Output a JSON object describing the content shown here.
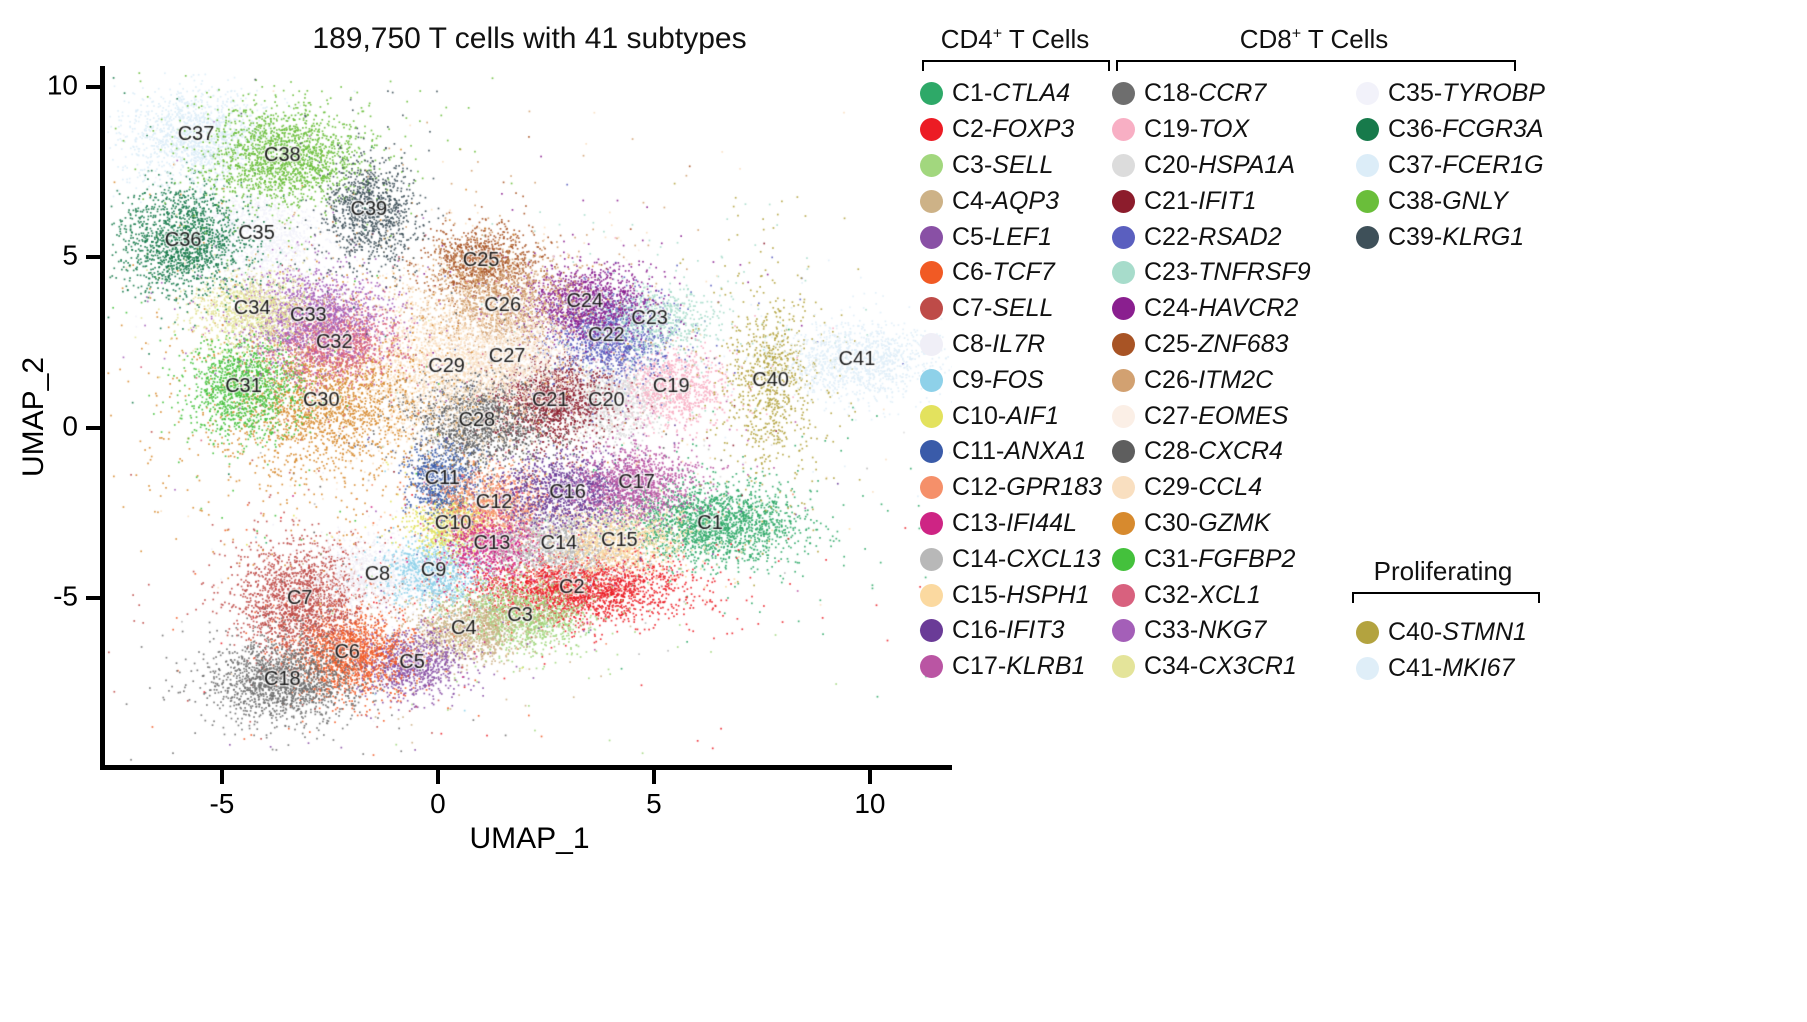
{
  "title": "189,750 T cells with 41 subtypes",
  "axes": {
    "x_label": "UMAP_1",
    "y_label": "UMAP_2",
    "x_ticks": [
      -5,
      0,
      5,
      10
    ],
    "y_ticks": [
      -5,
      0,
      5,
      10
    ],
    "xlim": [
      -7.66,
      11.9
    ],
    "ylim": [
      -9.9,
      10.5
    ]
  },
  "legend": {
    "groups": [
      {
        "title": {
          "pre": "CD4",
          "sup": "+",
          "post": " T Cells"
        },
        "items": [
          {
            "id": "C1",
            "gene": "CTLA4",
            "color": "#2EA968"
          },
          {
            "id": "C2",
            "gene": "FOXP3",
            "color": "#EC1C24"
          },
          {
            "id": "C3",
            "gene": "SELL",
            "color": "#A2D77E"
          },
          {
            "id": "C4",
            "gene": "AQP3",
            "color": "#CDB287"
          },
          {
            "id": "C5",
            "gene": "LEF1",
            "color": "#8950A5"
          },
          {
            "id": "C6",
            "gene": "TCF7",
            "color": "#F15A24"
          },
          {
            "id": "C7",
            "gene": "SELL",
            "color": "#BE4B48"
          },
          {
            "id": "C8",
            "gene": "IL7R",
            "color": "#F0EFF7"
          },
          {
            "id": "C9",
            "gene": "FOS",
            "color": "#8ED1E9"
          },
          {
            "id": "C10",
            "gene": "AIF1",
            "color": "#E3E25E"
          },
          {
            "id": "C11",
            "gene": "ANXA1",
            "color": "#3A5BA9"
          },
          {
            "id": "C12",
            "gene": "GPR183",
            "color": "#F5906A"
          },
          {
            "id": "C13",
            "gene": "IFI44L",
            "color": "#CE2484"
          },
          {
            "id": "C14",
            "gene": "CXCL13",
            "color": "#B8B8B8"
          },
          {
            "id": "C15",
            "gene": "HSPH1",
            "color": "#FBD9A0"
          },
          {
            "id": "C16",
            "gene": "IFIT3",
            "color": "#6A3B97"
          },
          {
            "id": "C17",
            "gene": "KLRB1",
            "color": "#BA55A3"
          }
        ]
      },
      {
        "title": {
          "pre": "CD8",
          "sup": "+",
          "post": " T Cells"
        },
        "items": [
          {
            "id": "C18",
            "gene": "CCR7",
            "color": "#6E6E6E"
          },
          {
            "id": "C19",
            "gene": "TOX",
            "color": "#F8AFC4"
          },
          {
            "id": "C20",
            "gene": "HSPA1A",
            "color": "#DCDCDC"
          },
          {
            "id": "C21",
            "gene": "IFIT1",
            "color": "#8C1C2C"
          },
          {
            "id": "C22",
            "gene": "RSAD2",
            "color": "#5A5FBF"
          },
          {
            "id": "C23",
            "gene": "TNFRSF9",
            "color": "#A7DCCB"
          },
          {
            "id": "C24",
            "gene": "HAVCR2",
            "color": "#8A1F8F"
          },
          {
            "id": "C25",
            "gene": "ZNF683",
            "color": "#A85425"
          },
          {
            "id": "C26",
            "gene": "ITM2C",
            "color": "#D2A171"
          },
          {
            "id": "C27",
            "gene": "EOMES",
            "color": "#FBEFE6"
          },
          {
            "id": "C28",
            "gene": "CXCR4",
            "color": "#5E5E5E"
          },
          {
            "id": "C29",
            "gene": "CCL4",
            "color": "#F9DFC0"
          },
          {
            "id": "C30",
            "gene": "GZMK",
            "color": "#D78A2E"
          },
          {
            "id": "C31",
            "gene": "FGFBP2",
            "color": "#44C13C"
          },
          {
            "id": "C32",
            "gene": "XCL1",
            "color": "#D8617E"
          },
          {
            "id": "C33",
            "gene": "NKG7",
            "color": "#A45FB8"
          },
          {
            "id": "C34",
            "gene": "CX3CR1",
            "color": "#E4E49A"
          },
          {
            "id": "C35",
            "gene": "TYROBP",
            "color": "#F2F2FA"
          },
          {
            "id": "C36",
            "gene": "FCGR3A",
            "color": "#177A4B"
          },
          {
            "id": "C37",
            "gene": "FCER1G",
            "color": "#DCEDF8"
          },
          {
            "id": "C38",
            "gene": "GNLY",
            "color": "#6ABE3A"
          },
          {
            "id": "C39",
            "gene": "KLRG1",
            "color": "#3E5059"
          }
        ]
      },
      {
        "title": {
          "pre": "Proliferating",
          "sup": "",
          "post": ""
        },
        "items": [
          {
            "id": "C40",
            "gene": "STMN1",
            "color": "#B3A33F"
          },
          {
            "id": "C41",
            "gene": "MKI67",
            "color": "#DFEEF8"
          }
        ]
      }
    ]
  },
  "chart_data": {
    "type": "scatter",
    "title": "189,750 T cells with 41 subtypes",
    "xlabel": "UMAP_1",
    "ylabel": "UMAP_2",
    "xlim": [
      -7.66,
      11.9
    ],
    "ylim": [
      -9.9,
      10.5
    ],
    "total_cells": "189,750",
    "n_subtypes": 41,
    "clusters": [
      {
        "id": "C1",
        "gene": "CTLA4",
        "color": "#2EA968",
        "x": 6.3,
        "y": -2.8,
        "sx": 1.05,
        "sy": 0.6,
        "n": 2000
      },
      {
        "id": "C2",
        "gene": "FOXP3",
        "color": "#EC1C24",
        "x": 3.1,
        "y": -4.7,
        "sx": 1.25,
        "sy": 0.5,
        "n": 2400
      },
      {
        "id": "C3",
        "gene": "SELL",
        "color": "#A2D77E",
        "x": 1.9,
        "y": -5.5,
        "sx": 0.8,
        "sy": 0.55,
        "n": 1300
      },
      {
        "id": "C4",
        "gene": "AQP3",
        "color": "#CDB287",
        "x": 0.6,
        "y": -5.9,
        "sx": 0.7,
        "sy": 0.5,
        "n": 1100
      },
      {
        "id": "C5",
        "gene": "LEF1",
        "color": "#8950A5",
        "x": -0.6,
        "y": -6.9,
        "sx": 0.6,
        "sy": 0.5,
        "n": 900
      },
      {
        "id": "C6",
        "gene": "TCF7",
        "color": "#F15A24",
        "x": -2.1,
        "y": -6.6,
        "sx": 0.7,
        "sy": 0.65,
        "n": 1600
      },
      {
        "id": "C7",
        "gene": "SELL",
        "color": "#BE4B48",
        "x": -3.2,
        "y": -5.0,
        "sx": 0.75,
        "sy": 0.85,
        "n": 1800
      },
      {
        "id": "C8",
        "gene": "IL7R",
        "color": "#F0EFF7",
        "x": -1.4,
        "y": -4.3,
        "sx": 0.7,
        "sy": 0.55,
        "n": 1100
      },
      {
        "id": "C9",
        "gene": "FOS",
        "color": "#8ED1E9",
        "x": -0.1,
        "y": -4.2,
        "sx": 0.55,
        "sy": 0.5,
        "n": 900
      },
      {
        "id": "C10",
        "gene": "AIF1",
        "color": "#E3E25E",
        "x": 0.35,
        "y": -2.8,
        "sx": 0.5,
        "sy": 0.45,
        "n": 800
      },
      {
        "id": "C11",
        "gene": "ANXA1",
        "color": "#3A5BA9",
        "x": 0.1,
        "y": -1.5,
        "sx": 0.4,
        "sy": 0.55,
        "n": 800
      },
      {
        "id": "C12",
        "gene": "GPR183",
        "color": "#F5906A",
        "x": 1.3,
        "y": -2.2,
        "sx": 0.7,
        "sy": 0.55,
        "n": 1100
      },
      {
        "id": "C13",
        "gene": "IFI44L",
        "color": "#CE2484",
        "x": 1.25,
        "y": -3.4,
        "sx": 0.55,
        "sy": 0.45,
        "n": 800
      },
      {
        "id": "C14",
        "gene": "CXCL13",
        "color": "#B8B8B8",
        "x": 2.8,
        "y": -3.4,
        "sx": 0.85,
        "sy": 0.5,
        "n": 1300
      },
      {
        "id": "C15",
        "gene": "HSPH1",
        "color": "#FBD9A0",
        "x": 4.2,
        "y": -3.3,
        "sx": 0.8,
        "sy": 0.5,
        "n": 1200
      },
      {
        "id": "C16",
        "gene": "IFIT3",
        "color": "#6A3B97",
        "x": 3.0,
        "y": -1.9,
        "sx": 0.8,
        "sy": 0.55,
        "n": 1300
      },
      {
        "id": "C17",
        "gene": "KLRB1",
        "color": "#BA55A3",
        "x": 4.6,
        "y": -1.6,
        "sx": 0.7,
        "sy": 0.55,
        "n": 1200
      },
      {
        "id": "C18",
        "gene": "CCR7",
        "color": "#6E6E6E",
        "x": -3.6,
        "y": -7.4,
        "sx": 0.85,
        "sy": 0.6,
        "n": 1700
      },
      {
        "id": "C19",
        "gene": "TOX",
        "color": "#F8AFC4",
        "x": 5.4,
        "y": 1.2,
        "sx": 0.65,
        "sy": 0.55,
        "n": 1000
      },
      {
        "id": "C20",
        "gene": "HSPA1A",
        "color": "#DCDCDC",
        "x": 3.9,
        "y": 0.8,
        "sx": 0.6,
        "sy": 0.55,
        "n": 1000
      },
      {
        "id": "C21",
        "gene": "IFIT1",
        "color": "#8C1C2C",
        "x": 2.6,
        "y": 0.8,
        "sx": 0.7,
        "sy": 0.65,
        "n": 1400
      },
      {
        "id": "C22",
        "gene": "RSAD2",
        "color": "#5A5FBF",
        "x": 3.9,
        "y": 2.7,
        "sx": 0.7,
        "sy": 0.6,
        "n": 1300
      },
      {
        "id": "C23",
        "gene": "TNFRSF9",
        "color": "#A7DCCB",
        "x": 4.9,
        "y": 3.2,
        "sx": 0.75,
        "sy": 0.5,
        "n": 800,
        "noise": 0.15
      },
      {
        "id": "C24",
        "gene": "HAVCR2",
        "color": "#8A1F8F",
        "x": 3.4,
        "y": 3.7,
        "sx": 0.75,
        "sy": 0.55,
        "n": 1300
      },
      {
        "id": "C25",
        "gene": "ZNF683",
        "color": "#A85425",
        "x": 1.0,
        "y": 4.9,
        "sx": 0.6,
        "sy": 0.5,
        "n": 1000
      },
      {
        "id": "C26",
        "gene": "ITM2C",
        "color": "#D2A171",
        "x": 1.5,
        "y": 3.6,
        "sx": 0.9,
        "sy": 0.75,
        "n": 1500,
        "noise": 0.1
      },
      {
        "id": "C27",
        "gene": "EOMES",
        "color": "#FBEFE6",
        "x": 1.6,
        "y": 2.1,
        "sx": 0.8,
        "sy": 0.65,
        "n": 1200
      },
      {
        "id": "C28",
        "gene": "CXCR4",
        "color": "#5E5E5E",
        "x": 0.9,
        "y": 0.2,
        "sx": 0.8,
        "sy": 0.65,
        "n": 1500
      },
      {
        "id": "C29",
        "gene": "CCL4",
        "color": "#F9DFC0",
        "x": 0.2,
        "y": 1.8,
        "sx": 1.35,
        "sy": 1.2,
        "n": 2600,
        "noise": 0.08
      },
      {
        "id": "C30",
        "gene": "GZMK",
        "color": "#D78A2E",
        "x": -2.7,
        "y": 0.8,
        "sx": 1.05,
        "sy": 0.95,
        "n": 2300,
        "noise": 0.3,
        "noise_scale": 2.6
      },
      {
        "id": "C31",
        "gene": "FGFBP2",
        "color": "#44C13C",
        "x": -4.5,
        "y": 1.2,
        "sx": 0.65,
        "sy": 0.75,
        "n": 1300
      },
      {
        "id": "C32",
        "gene": "XCL1",
        "color": "#D8617E",
        "x": -2.4,
        "y": 2.5,
        "sx": 0.7,
        "sy": 0.6,
        "n": 1200
      },
      {
        "id": "C33",
        "gene": "NKG7",
        "color": "#A45FB8",
        "x": -3.0,
        "y": 3.3,
        "sx": 0.85,
        "sy": 0.7,
        "n": 1500
      },
      {
        "id": "C34",
        "gene": "CX3CR1",
        "color": "#E4E49A",
        "x": -4.3,
        "y": 3.5,
        "sx": 0.7,
        "sy": 0.55,
        "n": 1100
      },
      {
        "id": "C35",
        "gene": "TYROBP",
        "color": "#F2F2FA",
        "x": -4.2,
        "y": 5.7,
        "sx": 0.75,
        "sy": 0.7,
        "n": 1300
      },
      {
        "id": "C36",
        "gene": "FCGR3A",
        "color": "#177A4B",
        "x": -5.9,
        "y": 5.5,
        "sx": 0.75,
        "sy": 0.8,
        "n": 1600
      },
      {
        "id": "C37",
        "gene": "FCER1G",
        "color": "#DCEDF8",
        "x": -5.6,
        "y": 8.6,
        "sx": 0.8,
        "sy": 0.65,
        "n": 1400
      },
      {
        "id": "C38",
        "gene": "GNLY",
        "color": "#6ABE3A",
        "x": -3.6,
        "y": 8.0,
        "sx": 0.95,
        "sy": 0.7,
        "n": 1800
      },
      {
        "id": "C39",
        "gene": "KLRG1",
        "color": "#3E5059",
        "x": -1.6,
        "y": 6.4,
        "sx": 0.5,
        "sy": 0.8,
        "n": 1000
      },
      {
        "id": "C40",
        "gene": "STMN1",
        "color": "#B3A33F",
        "x": 7.7,
        "y": 1.4,
        "sx": 0.45,
        "sy": 1.1,
        "n": 900,
        "noise": 0.3,
        "noise_scale": 2
      },
      {
        "id": "C41",
        "gene": "MKI67",
        "color": "#DFEEF8",
        "x": 9.7,
        "y": 2.0,
        "sx": 0.95,
        "sy": 0.55,
        "n": 1300
      }
    ]
  }
}
